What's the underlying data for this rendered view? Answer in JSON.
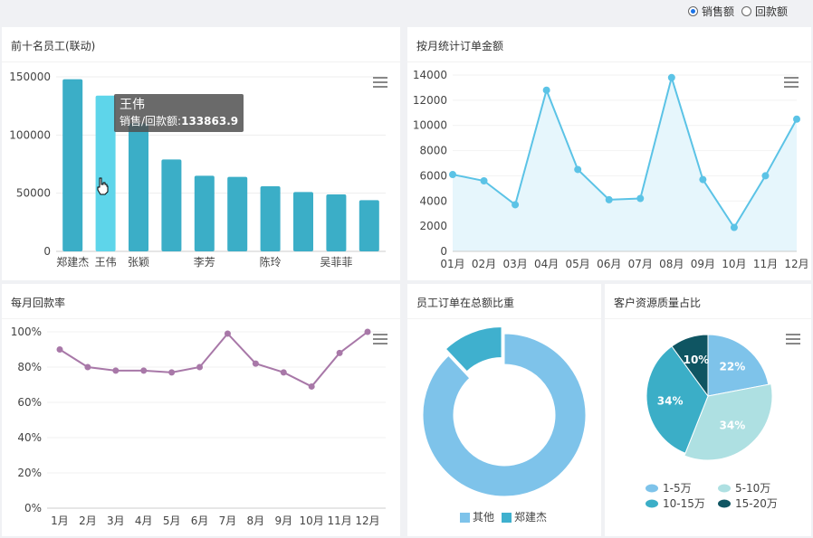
{
  "radio": {
    "options": [
      {
        "label": "销售额",
        "checked": true
      },
      {
        "label": "回款额",
        "checked": false
      }
    ]
  },
  "colors": {
    "bar": "#3baec7",
    "bar_highlight": "#5ed5ea",
    "line_blue": "#5bc3e6",
    "area_blue": "#e6f6fc",
    "line_purple": "#a878a8",
    "donut_large": "#7ec3ea",
    "donut_small": "#3fb0ce",
    "pie1": "#7ec3ea",
    "pie2": "#aee0e2",
    "pie3": "#3baec7",
    "pie4": "#0f5562"
  },
  "chart_data": [
    {
      "id": "top10",
      "type": "bar",
      "title": "前十名员工(联动)",
      "categories": [
        "郑建杰",
        "王伟",
        "张颖",
        "",
        "李芳",
        "",
        "陈玲",
        "",
        "吴菲菲",
        ""
      ],
      "values": [
        148000,
        133863.9,
        110000,
        79000,
        65000,
        64000,
        56000,
        51000,
        49000,
        44000
      ],
      "yticks": [
        "0",
        "50000",
        "100000",
        "150000"
      ],
      "ylim": [
        0,
        150000
      ],
      "highlight_index": 1,
      "tooltip": {
        "name": "王伟",
        "label": "销售/回款额:",
        "value": "133863.9"
      }
    },
    {
      "id": "monthly_orders",
      "type": "line",
      "title": "按月统计订单金额",
      "categories": [
        "01月",
        "02月",
        "03月",
        "04月",
        "05月",
        "06月",
        "07月",
        "08月",
        "09月",
        "10月",
        "11月",
        "12月"
      ],
      "values": [
        6100,
        5600,
        3700,
        12800,
        6500,
        4100,
        4200,
        13800,
        5700,
        1900,
        6000,
        10500
      ],
      "yticks": [
        "0",
        "2000",
        "4000",
        "6000",
        "8000",
        "10000",
        "12000",
        "14000"
      ],
      "ylim": [
        0,
        14000
      ]
    },
    {
      "id": "repayment_rate",
      "type": "line",
      "title": "每月回款率",
      "categories": [
        "1月",
        "2月",
        "3月",
        "4月",
        "5月",
        "6月",
        "7月",
        "8月",
        "9月",
        "10月",
        "11月",
        "12月"
      ],
      "values": [
        90,
        80,
        78,
        78,
        77,
        80,
        99,
        82,
        77,
        69,
        88,
        100
      ],
      "yticks": [
        "0%",
        "20%",
        "40%",
        "60%",
        "80%",
        "100%"
      ],
      "ylim": [
        0,
        100
      ]
    },
    {
      "id": "employee_share",
      "type": "pie",
      "title": "员工订单在总额比重",
      "slices": [
        {
          "name": "其他",
          "value": 88
        },
        {
          "name": "郑建杰",
          "value": 12
        }
      ]
    },
    {
      "id": "customer_quality",
      "type": "pie",
      "title": "客户资源质量占比",
      "slices": [
        {
          "name": "1-5万",
          "value": 22,
          "label": "22%"
        },
        {
          "name": "5-10万",
          "value": 34,
          "label": "34%"
        },
        {
          "name": "10-15万",
          "value": 34,
          "label": "34%"
        },
        {
          "name": "15-20万",
          "value": 10,
          "label": "10%"
        }
      ]
    }
  ]
}
